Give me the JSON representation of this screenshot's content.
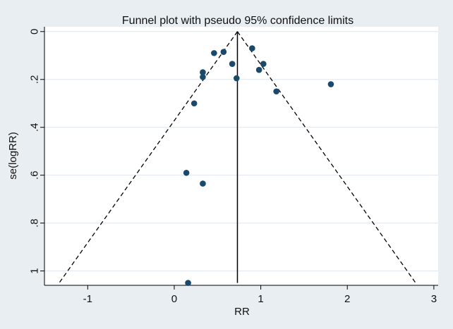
{
  "chart_data": {
    "type": "scatter",
    "title": "Funnel plot with pseudo 95% confidence limits",
    "xlabel": "RR",
    "ylabel": "se(logRR)",
    "xlim": [
      -1.5,
      3.05
    ],
    "ylim": [
      1.06,
      -0.02
    ],
    "y_reversed": true,
    "x_ticks": [
      -1,
      0,
      1,
      2,
      3
    ],
    "x_tick_labels": [
      "-1",
      "0",
      "1",
      "2",
      "3"
    ],
    "y_ticks": [
      0,
      0.2,
      0.4,
      0.6,
      0.8,
      1
    ],
    "y_tick_labels": [
      "0",
      ".2",
      ".4",
      ".6",
      ".8",
      "1"
    ],
    "grid": true,
    "pooled_estimate": 0.73,
    "pooled_line_range": [
      0,
      1.05
    ],
    "funnel_limits": {
      "left": [
        [
          0.73,
          0
        ],
        [
          -1.33,
          1.05
        ]
      ],
      "right": [
        [
          0.73,
          0
        ],
        [
          2.79,
          1.05
        ]
      ]
    },
    "points": [
      {
        "x": 0.46,
        "y": 0.09
      },
      {
        "x": 0.57,
        "y": 0.085
      },
      {
        "x": 0.9,
        "y": 0.07
      },
      {
        "x": 0.67,
        "y": 0.135
      },
      {
        "x": 1.03,
        "y": 0.135
      },
      {
        "x": 0.98,
        "y": 0.16
      },
      {
        "x": 0.33,
        "y": 0.17
      },
      {
        "x": 0.33,
        "y": 0.19
      },
      {
        "x": 0.72,
        "y": 0.195
      },
      {
        "x": 1.18,
        "y": 0.25
      },
      {
        "x": 1.81,
        "y": 0.22
      },
      {
        "x": 0.23,
        "y": 0.3
      },
      {
        "x": 0.14,
        "y": 0.59
      },
      {
        "x": 0.33,
        "y": 0.635
      },
      {
        "x": 0.16,
        "y": 1.05
      }
    ],
    "colors": {
      "background": "#e8eef2",
      "plot_background": "#ffffff",
      "grid": "#dfe6eb",
      "marker": "#1a4a6b",
      "line": "#000000"
    }
  }
}
